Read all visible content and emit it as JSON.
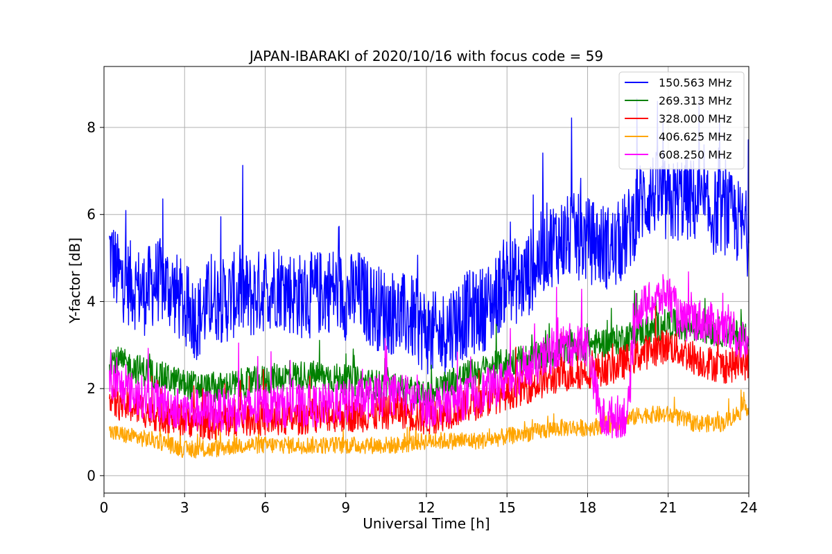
{
  "chart_data": {
    "type": "line",
    "title": "JAPAN-IBARAKI of 2020/10/16 with focus code = 59",
    "xlabel": "Universal Time [h]",
    "ylabel": "Y-factor [dB]",
    "xlim": [
      0,
      24
    ],
    "ylim": [
      -0.4,
      9.4
    ],
    "xticks": [
      0,
      3,
      6,
      9,
      12,
      15,
      18,
      21,
      24
    ],
    "yticks": [
      0,
      2,
      4,
      6,
      8
    ],
    "grid": true,
    "legend_position": "top-right",
    "series": [
      {
        "name": "150.563 MHz",
        "color": "#0000ff",
        "x": [
          0.2,
          0.5,
          1,
          1.5,
          2,
          2.5,
          3,
          3.5,
          4,
          4.5,
          5,
          5.5,
          6,
          6.5,
          7,
          7.5,
          8,
          8.5,
          9,
          9.5,
          10,
          10.5,
          11,
          11.5,
          12,
          12.5,
          13,
          13.5,
          14,
          14.5,
          15,
          15.5,
          16,
          16.5,
          17,
          17.5,
          18,
          18.5,
          19,
          19.5,
          20,
          20.5,
          21,
          21.5,
          22,
          22.5,
          23,
          23.5,
          24
        ],
        "values": [
          5.2,
          4.6,
          4.4,
          4.2,
          4.5,
          4.3,
          3.9,
          3.6,
          4.1,
          4.0,
          4.2,
          4.1,
          4.3,
          4.4,
          4.2,
          4.1,
          4.2,
          4.3,
          4.1,
          4.2,
          3.9,
          3.8,
          3.7,
          3.6,
          3.3,
          3.2,
          3.5,
          3.7,
          3.8,
          4.0,
          4.6,
          4.4,
          4.8,
          5.3,
          5.4,
          5.5,
          5.4,
          5.3,
          5.2,
          5.6,
          6.3,
          6.5,
          6.2,
          6.4,
          6.3,
          6.0,
          6.1,
          5.9,
          5.5
        ],
        "spread": 1.0
      },
      {
        "name": "269.313 MHz",
        "color": "#008000",
        "x": [
          0.2,
          1,
          2,
          3,
          4,
          5,
          6,
          7,
          8,
          9,
          10,
          11,
          12,
          13,
          14,
          15,
          16,
          17,
          18,
          19,
          20,
          21,
          22,
          23,
          24
        ],
        "values": [
          2.7,
          2.5,
          2.3,
          2.1,
          2.0,
          2.1,
          2.2,
          2.3,
          2.3,
          2.2,
          2.1,
          2.0,
          1.8,
          2.2,
          2.4,
          2.6,
          2.7,
          2.9,
          3.0,
          3.1,
          3.3,
          3.5,
          3.4,
          3.3,
          3.2
        ],
        "spread": 0.35
      },
      {
        "name": "328.000 MHz",
        "color": "#ff0000",
        "x": [
          0.2,
          1,
          2,
          3,
          4,
          5,
          6,
          7,
          8,
          9,
          10,
          11,
          12,
          13,
          14,
          15,
          16,
          17,
          18,
          19,
          20,
          21,
          22,
          23,
          24
        ],
        "values": [
          1.7,
          1.6,
          1.4,
          1.3,
          1.2,
          1.3,
          1.3,
          1.3,
          1.4,
          1.4,
          1.4,
          1.5,
          1.3,
          1.5,
          1.7,
          1.9,
          2.1,
          2.3,
          2.4,
          2.5,
          2.8,
          3.0,
          2.7,
          2.5,
          2.6
        ],
        "spread": 0.4
      },
      {
        "name": "406.625 MHz",
        "color": "#ffa500",
        "x": [
          0.2,
          1,
          2,
          3,
          4,
          5,
          6,
          7,
          8,
          9,
          10,
          11,
          12,
          13,
          14,
          15,
          16,
          17,
          18,
          19,
          20,
          21,
          22,
          23,
          24
        ],
        "values": [
          1.0,
          0.9,
          0.8,
          0.6,
          0.6,
          0.7,
          0.7,
          0.7,
          0.7,
          0.7,
          0.7,
          0.7,
          0.8,
          0.8,
          0.8,
          0.9,
          1.0,
          1.1,
          1.1,
          1.2,
          1.4,
          1.4,
          1.2,
          1.2,
          1.6
        ],
        "spread": 0.2
      },
      {
        "name": "608.250 MHz",
        "color": "#ff00ff",
        "x": [
          0.2,
          1,
          2,
          3,
          4,
          5,
          6,
          7,
          8,
          9,
          10,
          11,
          12,
          13,
          14,
          15,
          16,
          17,
          18,
          18.5,
          19.5,
          19.8,
          20.5,
          21,
          21.5,
          22,
          23,
          24
        ],
        "values": [
          2.2,
          1.9,
          1.7,
          1.5,
          1.5,
          1.5,
          1.6,
          1.6,
          1.6,
          1.7,
          1.8,
          1.9,
          1.6,
          1.7,
          1.9,
          2.2,
          2.5,
          3.0,
          3.0,
          1.3,
          1.4,
          3.8,
          4.0,
          4.2,
          3.5,
          3.6,
          3.4,
          3.0
        ],
        "spread": 0.5
      }
    ]
  }
}
